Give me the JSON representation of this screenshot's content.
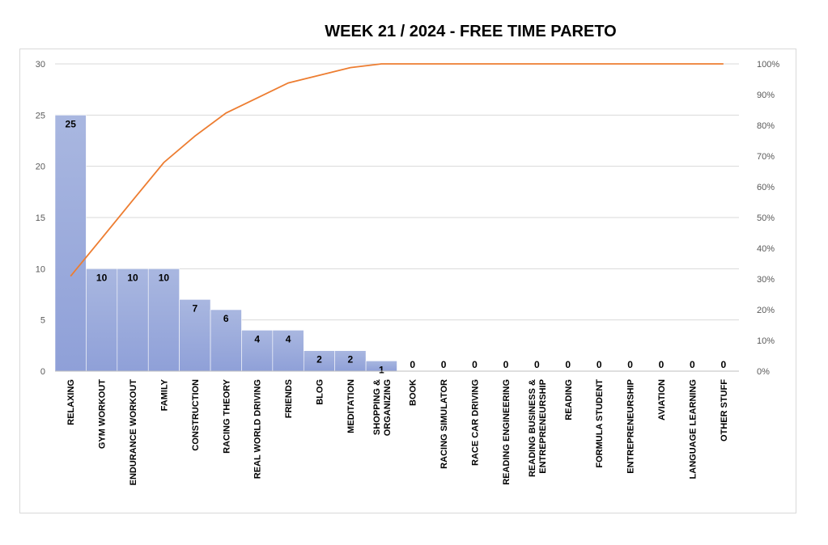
{
  "chart_data": {
    "type": "bar",
    "title": "WEEK 21 / 2024  - FREE TIME PARETO",
    "categories": [
      [
        "RELAXING"
      ],
      [
        "GYM WORKOUT"
      ],
      [
        "ENDURANCE WORKOUT"
      ],
      [
        "FAMILY"
      ],
      [
        "CONSTRUCTION"
      ],
      [
        "RACING THEORY"
      ],
      [
        "REAL WORLD DRIVING"
      ],
      [
        "FRIENDS"
      ],
      [
        "BLOG"
      ],
      [
        "MEDITATION"
      ],
      [
        "SHOPPING &",
        "ORGANIZING"
      ],
      [
        "BOOK"
      ],
      [
        "RACING SIMULATOR"
      ],
      [
        "RACE CAR DRIVING"
      ],
      [
        "READING ENGINEERING"
      ],
      [
        "READING BUSINESS &",
        "ENTREPRENEURSHIP"
      ],
      [
        "READING"
      ],
      [
        "FORMULA STUDENT"
      ],
      [
        "ENTREPRENEURSHIP"
      ],
      [
        "AVIATION"
      ],
      [
        "LANGUAGE LEARNING"
      ],
      [
        "OTHER STUFF"
      ]
    ],
    "series": [
      {
        "type": "bar",
        "values": [
          25,
          10,
          10,
          10,
          7,
          6,
          4,
          4,
          2,
          2,
          1,
          0,
          0,
          0,
          0,
          0,
          0,
          0,
          0,
          0,
          0,
          0
        ]
      },
      {
        "type": "line",
        "axis": "right",
        "values": [
          30.9,
          43.2,
          55.6,
          67.9,
          76.5,
          84.0,
          88.9,
          93.8,
          96.3,
          98.8,
          100,
          100,
          100,
          100,
          100,
          100,
          100,
          100,
          100,
          100,
          100,
          100
        ]
      }
    ],
    "ylim": [
      0,
      30
    ],
    "yticks": [
      0,
      5,
      10,
      15,
      20,
      25,
      30
    ],
    "y2lim": [
      0,
      100
    ],
    "y2ticks": [
      "0%",
      "10%",
      "20%",
      "30%",
      "40%",
      "50%",
      "60%",
      "70%",
      "80%",
      "90%",
      "100%"
    ],
    "grid": true,
    "legend": "none",
    "colors": {
      "bar_top": "#a9b7e0",
      "bar_bottom": "#8fa0d8",
      "line": "#ed7d31",
      "grid": "#d9d9d9"
    }
  }
}
